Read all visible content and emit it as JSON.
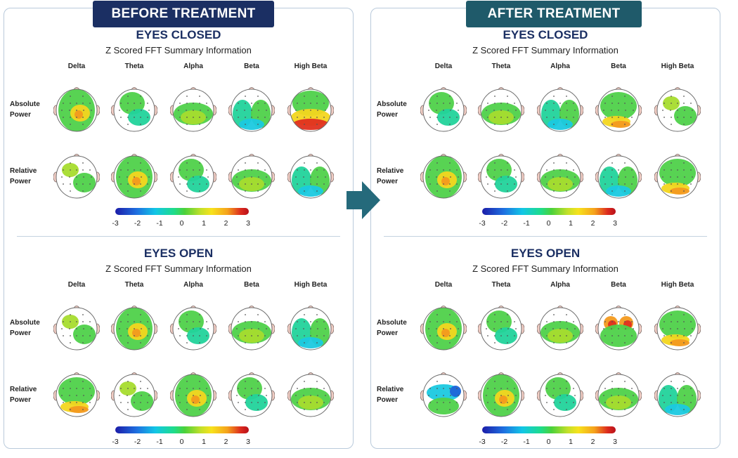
{
  "panels": [
    {
      "banner": "BEFORE TREATMENT"
    },
    {
      "banner": "AFTER TREATMENT"
    }
  ],
  "sections": [
    {
      "title": "EYES CLOSED",
      "subtitle": "Z Scored FFT Summary Information"
    },
    {
      "title": "EYES OPEN",
      "subtitle": "Z Scored FFT Summary Information"
    }
  ],
  "bands": [
    "Delta",
    "Theta",
    "Alpha",
    "Beta",
    "High Beta"
  ],
  "rows": [
    {
      "line1": "Absolute",
      "line2": "Power"
    },
    {
      "line1": "Relative",
      "line2": "Power"
    }
  ],
  "colorbar_ticks": [
    "-3",
    "-2",
    "-1",
    "0",
    "1",
    "2",
    "3"
  ],
  "colors": {
    "before_banner": "#1b2f63",
    "after_banner": "#1f5a6a",
    "section_title": "#1b2f63",
    "arrow": "#256a7b"
  }
}
